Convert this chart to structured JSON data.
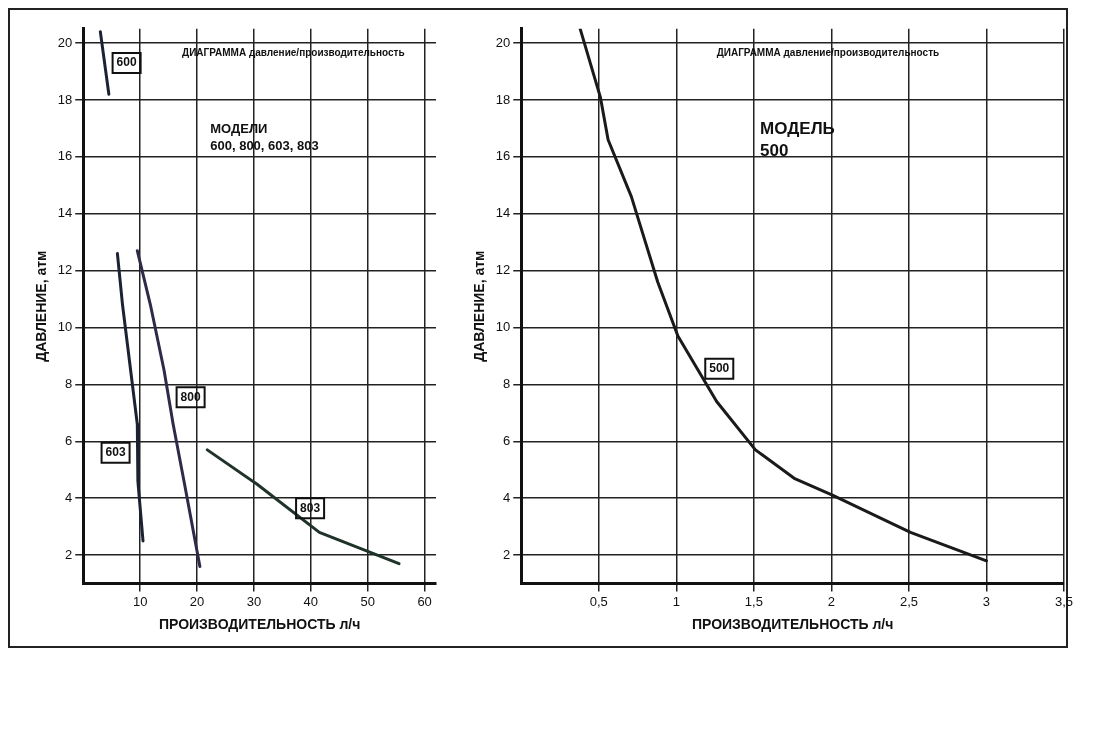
{
  "chart_data": [
    {
      "type": "line",
      "title": "ДИАГРАММА давление/производительность",
      "xlabel": "ПРОИЗВОДИТЕЛЬНОСТЬ л/ч",
      "ylabel": "ДАВЛЕНИЕ, атм",
      "annotations": [
        "МОДЕЛИ\n600, 800, 603, 803"
      ],
      "xlim": [
        0,
        62
      ],
      "xticks": [
        10,
        20,
        30,
        40,
        50,
        60
      ],
      "ylim": [
        1,
        20.5
      ],
      "yticks": [
        2,
        4,
        6,
        8,
        10,
        12,
        14,
        16,
        18,
        20
      ],
      "grid": true,
      "marker": "none",
      "line_style": "solid",
      "series": [
        {
          "name": "600",
          "color": "#1c2233",
          "x": [
            3,
            4.5
          ],
          "values": [
            20.4,
            18.2
          ]
        },
        {
          "name": "603",
          "color": "#1c2233",
          "x": [
            6,
            6.9,
            9.5,
            9.6,
            10.5
          ],
          "values": [
            12.6,
            10.8,
            6.6,
            4.6,
            2.5
          ]
        },
        {
          "name": "800",
          "color": "#2e2a4a",
          "x": [
            9.5,
            11.8,
            14.2,
            15.8,
            17.8,
            20.5
          ],
          "values": [
            12.7,
            10.8,
            8.5,
            6.6,
            4.5,
            1.6
          ]
        },
        {
          "name": "803",
          "color": "#1f3328",
          "x": [
            21.8,
            30.5,
            41.5,
            55.5
          ],
          "values": [
            5.7,
            4.5,
            2.8,
            1.7
          ]
        }
      ]
    },
    {
      "type": "line",
      "title": "ДИАГРАММА давление/производительность",
      "xlabel": "ПРОИЗВОДИТЕЛЬНОСТЬ л/ч",
      "ylabel": "ДАВЛЕНИЕ, атм",
      "annotations": [
        "МОДЕЛЬ\n500"
      ],
      "xlim": [
        0,
        3.5
      ],
      "xticks": [
        {
          "value": 0.5,
          "label": "0,5"
        },
        1,
        {
          "value": 1.5,
          "label": "1,5"
        },
        2,
        {
          "value": 2.5,
          "label": "2,5"
        },
        3,
        {
          "value": 3.5,
          "label": "3,5"
        }
      ],
      "ylim": [
        1,
        20.5
      ],
      "yticks": [
        2,
        4,
        6,
        8,
        10,
        12,
        14,
        16,
        18,
        20
      ],
      "grid": true,
      "marker": "none",
      "line_style": "solid",
      "series": [
        {
          "name": "500",
          "color": "#1a1a1a",
          "x": [
            0.38,
            0.51,
            0.56,
            0.71,
            0.88,
            1.01,
            1.26,
            1.51,
            1.76,
            2.01,
            2.51,
            3.0
          ],
          "values": [
            20.5,
            18.1,
            16.6,
            14.6,
            11.6,
            9.7,
            7.4,
            5.7,
            4.7,
            4.1,
            2.8,
            1.8
          ]
        }
      ]
    }
  ]
}
